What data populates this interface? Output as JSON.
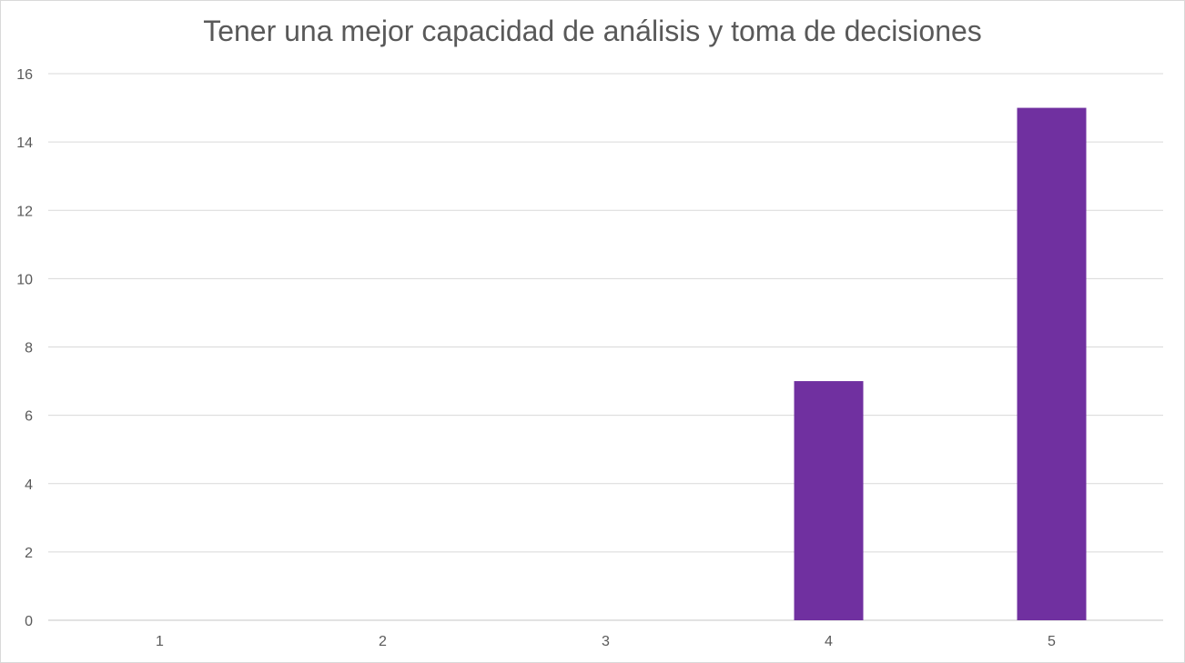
{
  "chart_data": {
    "type": "bar",
    "title": "Tener una mejor capacidad de análisis y toma de decisiones",
    "categories": [
      "1",
      "2",
      "3",
      "4",
      "5"
    ],
    "values": [
      0,
      0,
      0,
      7,
      15
    ],
    "xlabel": "",
    "ylabel": "",
    "ylim": [
      0,
      16
    ],
    "yticks": [
      "0",
      "2",
      "4",
      "6",
      "8",
      "10",
      "12",
      "14",
      "16"
    ],
    "grid": true,
    "legend": "none",
    "colors": {
      "bar": "#7030a0",
      "grid": "#d9d9d9",
      "text": "#595959"
    }
  }
}
